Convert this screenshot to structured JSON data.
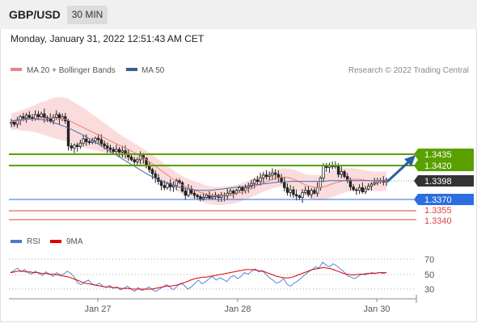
{
  "header": {
    "pair": "GBP/USD",
    "timeframe": "30 MIN"
  },
  "timestamp": "Monday, January 31, 2022 12:51:43 AM CET",
  "legend": {
    "ma20": {
      "label": "MA 20 + Bollinger Bands",
      "color": "#f08080"
    },
    "ma50": {
      "label": "MA 50",
      "color": "#3b5d9a"
    },
    "research": "Research © 2022 Trading Central"
  },
  "rsi_legend": {
    "rsi": {
      "label": "RSI",
      "color": "#4a7ad0"
    },
    "nine_ma": {
      "label": "9MA",
      "color": "#e00000"
    }
  },
  "levels": [
    {
      "value": "1.3435",
      "kind": "resistance",
      "color": "#5aa000"
    },
    {
      "value": "1.3420",
      "kind": "resistance",
      "color": "#5aa000"
    },
    {
      "value": "1.3398",
      "kind": "last-price",
      "color": "#333333"
    },
    {
      "value": "1.3370",
      "kind": "pivot",
      "color": "#2a6ee0"
    },
    {
      "value": "1.3355",
      "kind": "support",
      "color": "#e04040"
    },
    {
      "value": "1.3340",
      "kind": "support",
      "color": "#e04040"
    }
  ],
  "rsi_axis": [
    "70",
    "50",
    "30"
  ],
  "x_labels": [
    "Jan 27",
    "Jan 28",
    "Jan 30"
  ],
  "chart_data": {
    "type": "candlestick",
    "symbol": "GBP/USD",
    "interval": "30 MIN",
    "price_axis": {
      "min": 1.3335,
      "max": 1.3515
    },
    "close_path": [
      1.3481,
      1.3478,
      1.3484,
      1.3489,
      1.3487,
      1.3491,
      1.3488,
      1.3486,
      1.3492,
      1.3489,
      1.3493,
      1.3488,
      1.3486,
      1.3483,
      1.3488,
      1.3492,
      1.3486,
      1.3489,
      1.3483,
      1.3447,
      1.3444,
      1.3448,
      1.3446,
      1.3451,
      1.3457,
      1.3453,
      1.3452,
      1.3454,
      1.3458,
      1.3456,
      1.345,
      1.3447,
      1.3444,
      1.3442,
      1.3439,
      1.3442,
      1.3438,
      1.344,
      1.3436,
      1.3431,
      1.3427,
      1.3424,
      1.3427,
      1.3433,
      1.3429,
      1.3419,
      1.3413,
      1.3407,
      1.3401,
      1.3396,
      1.339,
      1.3387,
      1.3393,
      1.3388,
      1.339,
      1.3397,
      1.3394,
      1.3382,
      1.3376,
      1.3385,
      1.3379,
      1.3376,
      1.3374,
      1.3371,
      1.3373,
      1.3376,
      1.3372,
      1.3374,
      1.3376,
      1.3373,
      1.3376,
      1.3375,
      1.3379,
      1.3382,
      1.3379,
      1.3383,
      1.3387,
      1.3383,
      1.3387,
      1.3389,
      1.3393,
      1.3398,
      1.3396,
      1.3401,
      1.3405,
      1.3403,
      1.3405,
      1.3408,
      1.3406,
      1.3402,
      1.3395,
      1.3387,
      1.338,
      1.3384,
      1.3377,
      1.3375,
      1.3373,
      1.338,
      1.3383,
      1.3377,
      1.3383,
      1.3379,
      1.3387,
      1.3401,
      1.3419,
      1.3416,
      1.3419,
      1.3417,
      1.3418,
      1.3406,
      1.341,
      1.3403,
      1.3397,
      1.3388,
      1.3384,
      1.3383,
      1.3387,
      1.3381,
      1.3385,
      1.3389,
      1.3392,
      1.3394,
      1.3396,
      1.3397,
      1.3395,
      1.3398
    ],
    "ma20": [
      1.3482,
      1.3483,
      1.3484,
      1.3485,
      1.3486,
      1.3487,
      1.3487,
      1.3487,
      1.3487,
      1.3486,
      1.3484,
      1.348,
      1.3476,
      1.3472,
      1.3468,
      1.3464,
      1.346,
      1.3456,
      1.3452,
      1.3448,
      1.3444,
      1.344,
      1.3436,
      1.3431,
      1.3426,
      1.342,
      1.3414,
      1.3408,
      1.3402,
      1.3396,
      1.3391,
      1.3387,
      1.3384,
      1.3381,
      1.3378,
      1.3376,
      1.3375,
      1.3375,
      1.3376,
      1.3377,
      1.3379,
      1.3382,
      1.3385,
      1.3389,
      1.3393,
      1.3396,
      1.3399,
      1.3401,
      1.3402,
      1.3401,
      1.3398,
      1.3394,
      1.339,
      1.3388,
      1.3387,
      1.3388,
      1.3391,
      1.3394,
      1.3396,
      1.3398,
      1.3399,
      1.3399,
      1.3398,
      1.3397,
      1.3396,
      1.3396,
      1.3397
    ],
    "ma50": [
      1.3483,
      1.3484,
      1.3485,
      1.3486,
      1.3486,
      1.3485,
      1.3484,
      1.3482,
      1.3479,
      1.3476,
      1.3473,
      1.3469,
      1.3465,
      1.3461,
      1.3456,
      1.3451,
      1.3446,
      1.3441,
      1.3436,
      1.3431,
      1.3426,
      1.3421,
      1.3416,
      1.3411,
      1.3406,
      1.3402,
      1.3398,
      1.3395,
      1.3392,
      1.3389,
      1.3387,
      1.3385,
      1.3384,
      1.3383,
      1.3383,
      1.3383,
      1.3384,
      1.3385,
      1.3386,
      1.3387,
      1.3388,
      1.3389,
      1.339,
      1.3391,
      1.3392,
      1.3393,
      1.3394,
      1.3395,
      1.3395,
      1.3396,
      1.3396,
      1.3396,
      1.3396,
      1.3396,
      1.3396,
      1.3396,
      1.3397,
      1.3397,
      1.3397,
      1.3397,
      1.3397,
      1.3397,
      1.3397,
      1.3397,
      1.3397,
      1.3397,
      1.3397
    ],
    "band_width": [
      0.0012,
      0.0013,
      0.0015,
      0.0017,
      0.0019,
      0.0022,
      0.0025,
      0.0028,
      0.003,
      0.0031,
      0.0031,
      0.003,
      0.0029,
      0.0028,
      0.0026,
      0.0024,
      0.0022,
      0.002,
      0.0018,
      0.0016,
      0.0015,
      0.0014,
      0.0013,
      0.0013,
      0.0013,
      0.0013,
      0.0013,
      0.0013,
      0.0013,
      0.0013,
      0.0013,
      0.0013,
      0.0013,
      0.0013,
      0.0013,
      0.0013,
      0.0013,
      0.0013,
      0.0013,
      0.0013,
      0.0013,
      0.0013,
      0.0013,
      0.0013,
      0.0013,
      0.0013,
      0.0013,
      0.0013,
      0.0013,
      0.0013,
      0.0014,
      0.0015,
      0.0016,
      0.0017,
      0.0018,
      0.0019,
      0.0019,
      0.0019,
      0.0018,
      0.0017,
      0.0016,
      0.0015,
      0.0014,
      0.0014,
      0.0014,
      0.0014,
      0.0014
    ],
    "rsi_axis_range": [
      20,
      80
    ],
    "rsi": [
      52,
      55,
      58,
      53,
      56,
      52,
      50,
      54,
      51,
      48,
      53,
      50,
      47,
      52,
      49,
      50,
      54,
      51,
      46,
      38,
      36,
      40,
      42,
      37,
      35,
      38,
      34,
      32,
      35,
      31,
      33,
      29,
      31,
      34,
      30,
      27,
      32,
      28,
      30,
      33,
      29,
      27,
      30,
      33,
      36,
      32,
      29,
      34,
      38,
      35,
      30,
      33,
      38,
      42,
      37,
      40,
      44,
      47,
      42,
      45,
      43,
      40,
      46,
      48,
      44,
      47,
      52,
      50,
      54,
      57,
      53,
      55,
      50,
      45,
      42,
      38,
      40,
      44,
      36,
      34,
      38,
      41,
      45,
      49,
      53,
      56,
      60,
      58,
      66,
      62,
      60,
      64,
      61,
      57,
      53,
      48,
      46,
      44,
      47,
      50,
      49,
      51,
      52,
      51,
      52,
      51,
      52
    ],
    "rsi_9ma": [
      52,
      53,
      54,
      54,
      53,
      53,
      52,
      52,
      51,
      51,
      50,
      50,
      49,
      48,
      47,
      46,
      44,
      42,
      40,
      38,
      37,
      36,
      35,
      34,
      33,
      33,
      32,
      32,
      31,
      31,
      31,
      30,
      30,
      30,
      30,
      30,
      30,
      31,
      32,
      33,
      34,
      34,
      35,
      36,
      38,
      40,
      42,
      44,
      45,
      46,
      46,
      47,
      48,
      49,
      50,
      51,
      52,
      53,
      54,
      55,
      56,
      56,
      56,
      55,
      54,
      53,
      51,
      49,
      47,
      46,
      45,
      45,
      46,
      48,
      50,
      52,
      54,
      56,
      57,
      58,
      59,
      58,
      57,
      55,
      53,
      51,
      50,
      49,
      49,
      50,
      50,
      51,
      51,
      51,
      52,
      52,
      52
    ],
    "x_labels": [
      "Jan 27",
      "Jan 28",
      "Jan 30"
    ],
    "y_labels": [
      "1.3435",
      "1.3420",
      "1.3398",
      "1.3370",
      "1.3355",
      "1.3340"
    ],
    "rsi_labels": [
      "70",
      "50",
      "30"
    ]
  }
}
